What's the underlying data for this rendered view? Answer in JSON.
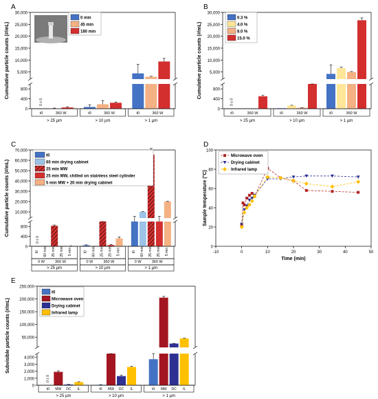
{
  "figure": {
    "panels": [
      "A",
      "B",
      "C",
      "D",
      "E"
    ]
  },
  "colors": {
    "blue": "#4472C4",
    "lightblue": "#9DC3E6",
    "lightorange": "#F4B183",
    "orange": "#F4A460",
    "red": "#D32F2F",
    "darkred": "#B22222",
    "yellow": "#FFE699",
    "navy": "#2E3192",
    "gold": "#FFC000",
    "crimson": "#A31621",
    "hatch": "#000000"
  },
  "chart_data": [
    {
      "panel": "A",
      "type": "bar",
      "ylabel": "Cumulative particle counts (#/mL)",
      "yticks_low": [
        "0",
        "400",
        "800"
      ],
      "yticks_high": [
        "5,000",
        "10,000",
        "15,000",
        "20,000",
        "25,000",
        "30,000"
      ],
      "ylim_low": [
        0,
        1000
      ],
      "ylim_high": [
        2000,
        30000
      ],
      "legend": [
        "0 min",
        "45 min",
        "180 min"
      ],
      "groups": [
        {
          "label": "> 25 µm",
          "bars": [
            {
              "tick": "t0",
              "sub": "0 W",
              "series": "0 min",
              "value": 0,
              "err": 0
            },
            {
              "tick": "360 W",
              "series": "45 min",
              "value": 10,
              "err": 15
            },
            {
              "tick": "360 W",
              "series": "180 min",
              "value": 50,
              "err": 30
            }
          ]
        },
        {
          "label": "> 10 µm",
          "bars": [
            {
              "tick": "t0",
              "series": "0 min",
              "value": 70,
              "err": 90
            },
            {
              "tick": "360 W",
              "series": "45 min",
              "value": 180,
              "err": 150
            },
            {
              "tick": "360 W",
              "series": "180 min",
              "value": 240,
              "err": 30
            }
          ]
        },
        {
          "label": "> 1 µm",
          "bars": [
            {
              "tick": "t0",
              "series": "0 min",
              "value": 4400,
              "err": 3800
            },
            {
              "tick": "360 W",
              "series": "45 min",
              "value": 3000,
              "err": 200
            },
            {
              "tick": "360 W",
              "series": "180 min",
              "value": 9400,
              "err": 1300
            }
          ]
        }
      ],
      "zero_labels": "0 ± 0",
      "ticklabels": [
        "t0",
        "360 W"
      ]
    },
    {
      "panel": "B",
      "type": "bar",
      "ylabel": "Cumulative particle counts (#/mL)",
      "yticks_low": [
        "0",
        "400",
        "800"
      ],
      "yticks_high": [
        "5,000",
        "10,000",
        "15,000",
        "20,000",
        "25,000",
        "30,000"
      ],
      "legend": [
        "0.3 %",
        "4.0 %",
        "8.0 %",
        "15.0 %"
      ],
      "groups": [
        {
          "label": "> 25 µm",
          "values": [
            0,
            0,
            0,
            500
          ],
          "errs": [
            0,
            0,
            0,
            40
          ]
        },
        {
          "label": "> 10 µm",
          "values": [
            20,
            130,
            40,
            1700
          ],
          "errs": [
            0,
            10,
            5,
            150
          ]
        },
        {
          "label": "> 1 µm",
          "values": [
            4200,
            6600,
            5000,
            26700
          ],
          "errs": [
            3800,
            400,
            200,
            1000
          ]
        }
      ],
      "zero_labels": "0 ± 0",
      "ticklabels": [
        "t0",
        "360 W"
      ]
    },
    {
      "panel": "C",
      "type": "bar",
      "ylabel": "Cumulative particle counts (#/mL)",
      "yticks_low": [
        "0",
        "400",
        "800"
      ],
      "yticks_high": [
        "10,000",
        "20,000",
        "30,000",
        "40,000",
        "50,000",
        "60,000",
        "70,000"
      ],
      "legend": [
        "t0",
        "60 min drying cabinet",
        "25 min MW",
        "25 min MW, chilled on stainless steel cylinder",
        "5 min MW + 20 min drying cabinet"
      ],
      "ticklabels": [
        "t0",
        "60 min",
        "25 min",
        "25 min",
        "5 min"
      ],
      "wattlabels": [
        "0 W",
        "360 W"
      ],
      "groups": [
        {
          "label": "> 25 µm",
          "values": [
            0,
            0,
            830,
            0,
            10
          ],
          "errs": [
            0,
            0,
            30,
            0,
            5
          ]
        },
        {
          "label": "> 10 µm",
          "values": [
            40,
            0,
            1850,
            50,
            320
          ],
          "errs": [
            20,
            0,
            80,
            20,
            60
          ]
        },
        {
          "label": "> 1 µm",
          "values": [
            3700,
            10000,
            65500,
            3700,
            20000
          ],
          "errs": [
            2000,
            300,
            6000,
            2000,
            400
          ]
        }
      ],
      "zero_labels": "0 ± 0"
    },
    {
      "panel": "D",
      "type": "line",
      "xlabel": "Time (min)",
      "ylabel": "Sample temperature (°C)",
      "xlim": [
        -10,
        50
      ],
      "ylim": [
        0,
        100
      ],
      "xticks": [
        "-10",
        "0",
        "10",
        "20",
        "30",
        "40",
        "50"
      ],
      "yticks": [
        "0",
        "20",
        "40",
        "60",
        "80",
        "100"
      ],
      "series": [
        {
          "name": "Microwave oven",
          "x": [
            0,
            0.5,
            1,
            2,
            3,
            4,
            5,
            10,
            15,
            20,
            25,
            35,
            45
          ],
          "y": [
            22,
            45,
            43,
            50,
            53,
            55,
            52,
            81,
            71,
            68,
            58,
            57,
            56
          ]
        },
        {
          "name": "Drying cabinet",
          "x": [
            0,
            1,
            2,
            3,
            4,
            5,
            10,
            15,
            20,
            25,
            35,
            45
          ],
          "y": [
            23,
            38,
            42,
            48,
            50,
            53,
            70,
            70,
            72,
            73,
            73,
            72
          ]
        },
        {
          "name": "Infrared lamp",
          "x": [
            0,
            1,
            2,
            3,
            4,
            5,
            10,
            15,
            20,
            25,
            35,
            45
          ],
          "y": [
            20,
            35,
            40,
            43,
            47,
            52,
            72,
            71,
            68,
            65,
            62,
            67
          ]
        }
      ]
    },
    {
      "panel": "E",
      "type": "bar",
      "ylabel": "Subvisible particle counts (#/mL)",
      "yticks_low": [
        "0",
        "1,000",
        "2,000",
        "3,000",
        "4,000"
      ],
      "yticks_high": [
        "50,000",
        "100,000",
        "150,000",
        "200,000",
        "250,000"
      ],
      "legend": [
        "t0",
        "Microwave oven",
        "Drying cabinet",
        "Infrared lamp"
      ],
      "ticklabels": [
        "t0",
        "MW",
        "DC",
        "IL"
      ],
      "groups": [
        {
          "label": "> 25 µm",
          "values": [
            0,
            1900,
            100,
            450
          ],
          "errs": [
            0,
            150,
            20,
            50
          ]
        },
        {
          "label": "> 10 µm",
          "values": [
            60,
            4800,
            1300,
            2600
          ],
          "errs": [
            20,
            100,
            150,
            100
          ]
        },
        {
          "label": "> 1 µm",
          "values": [
            3700,
            205000,
            25000,
            45000
          ],
          "errs": [
            2200,
            5000,
            1000,
            1500
          ]
        }
      ],
      "zero_labels": "0 ± 0"
    }
  ]
}
